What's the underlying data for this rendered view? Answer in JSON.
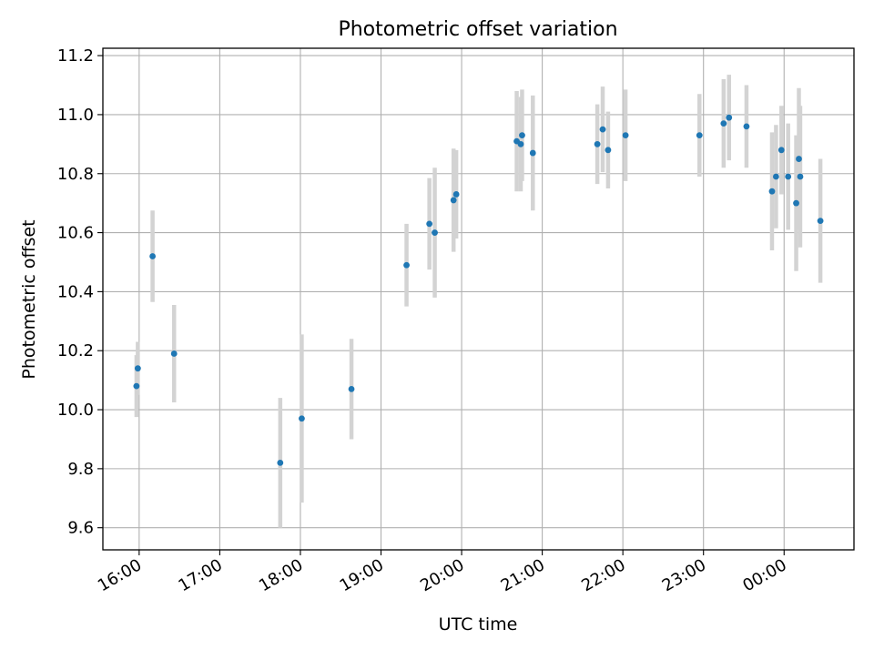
{
  "chart_data": {
    "type": "scatter",
    "title": "Photometric offset variation",
    "xlabel": "UTC time",
    "ylabel": "Photometric offset",
    "x_tick_labels": [
      "16:00",
      "17:00",
      "18:00",
      "19:00",
      "20:00",
      "21:00",
      "22:00",
      "23:00",
      "00:00"
    ],
    "y_tick_labels": [
      "9.6",
      "9.8",
      "10.0",
      "10.2",
      "10.4",
      "10.6",
      "10.8",
      "11.0",
      "11.2"
    ],
    "y_ticks": [
      9.6,
      9.8,
      10.0,
      10.2,
      10.4,
      10.6,
      10.8,
      11.0,
      11.2
    ],
    "xlim": [
      "15:33",
      "00:52"
    ],
    "ylim": [
      9.525,
      11.225
    ],
    "grid": true,
    "point_color": "#1f77b4",
    "errorbar_color": "#d3d3d3",
    "points": [
      {
        "time": "15:58",
        "y": 10.08,
        "err": 0.105
      },
      {
        "time": "15:59",
        "y": 10.14,
        "err": 0.09
      },
      {
        "time": "16:10",
        "y": 10.52,
        "err": 0.155
      },
      {
        "time": "16:26",
        "y": 10.19,
        "err": 0.165
      },
      {
        "time": "17:45",
        "y": 9.82,
        "err": 0.22
      },
      {
        "time": "18:01",
        "y": 9.97,
        "err": 0.285
      },
      {
        "time": "18:38",
        "y": 10.07,
        "err": 0.17
      },
      {
        "time": "19:19",
        "y": 10.49,
        "err": 0.14
      },
      {
        "time": "19:36",
        "y": 10.63,
        "err": 0.155
      },
      {
        "time": "19:40",
        "y": 10.6,
        "err": 0.22
      },
      {
        "time": "19:54",
        "y": 10.71,
        "err": 0.175
      },
      {
        "time": "19:56",
        "y": 10.73,
        "err": 0.15
      },
      {
        "time": "20:41",
        "y": 10.91,
        "err": 0.17
      },
      {
        "time": "20:44",
        "y": 10.9,
        "err": 0.16
      },
      {
        "time": "20:45",
        "y": 10.93,
        "err": 0.155
      },
      {
        "time": "20:53",
        "y": 10.87,
        "err": 0.195
      },
      {
        "time": "21:41",
        "y": 10.9,
        "err": 0.135
      },
      {
        "time": "21:45",
        "y": 10.95,
        "err": 0.145
      },
      {
        "time": "21:49",
        "y": 10.88,
        "err": 0.13
      },
      {
        "time": "22:02",
        "y": 10.93,
        "err": 0.155
      },
      {
        "time": "22:57",
        "y": 10.93,
        "err": 0.14
      },
      {
        "time": "23:15",
        "y": 10.97,
        "err": 0.15
      },
      {
        "time": "23:19",
        "y": 10.99,
        "err": 0.145
      },
      {
        "time": "23:32",
        "y": 10.96,
        "err": 0.14
      },
      {
        "time": "23:51",
        "y": 10.74,
        "err": 0.2
      },
      {
        "time": "23:54",
        "y": 10.79,
        "err": 0.175
      },
      {
        "time": "23:58",
        "y": 10.88,
        "err": 0.15
      },
      {
        "time": "00:03",
        "y": 10.79,
        "err": 0.18
      },
      {
        "time": "00:09",
        "y": 10.7,
        "err": 0.23
      },
      {
        "time": "00:11",
        "y": 10.85,
        "err": 0.24
      },
      {
        "time": "00:12",
        "y": 10.79,
        "err": 0.24
      },
      {
        "time": "00:27",
        "y": 10.64,
        "err": 0.21
      }
    ]
  }
}
